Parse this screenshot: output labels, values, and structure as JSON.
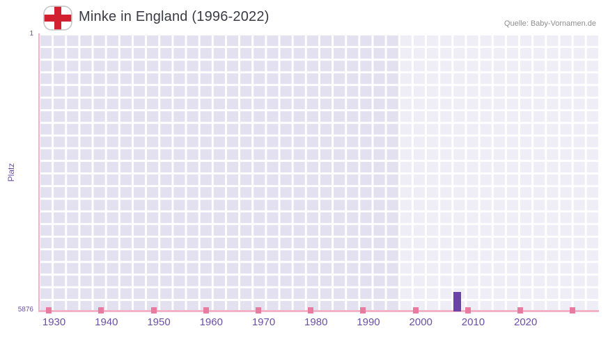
{
  "page": {
    "title": "Minke in England (1996-2022)",
    "source": "Quelle: Baby-Vornamen.de"
  },
  "flag": {
    "name": "england-flag",
    "field_color": "#ffffff",
    "cross_color": "#d22030",
    "border_color": "#c9c9c9"
  },
  "chart_data": {
    "type": "bar",
    "title": "Minke in England (1996-2022)",
    "ylabel": "Platz",
    "xlabel": "",
    "grid": true,
    "legend": "none",
    "y_axis": {
      "min": 1,
      "max": 5876,
      "inverted": true,
      "top_label": "1",
      "bottom_label": "5876"
    },
    "x_axis": {
      "domain": [
        1927,
        2034
      ],
      "tick_labels": [
        "1930",
        "1940",
        "1950",
        "1960",
        "1970",
        "1980",
        "1990",
        "2000",
        "2010",
        "2020"
      ]
    },
    "highlight_start_year": 1996,
    "decade_marks": [
      1929,
      1939,
      1949,
      1959,
      1969,
      1979,
      1989,
      1999,
      2009,
      2019,
      2029
    ],
    "series": [
      {
        "name": "Minke",
        "points": [
          {
            "year": 2007,
            "rank": 5465
          }
        ]
      }
    ],
    "colors": {
      "bar": "#6a43a8",
      "plot_bg": "#e3e0f0",
      "grid_line": "#ffffff",
      "highlight_overlay": "rgba(255,255,255,0.42)",
      "axis_line": "#f3b3c6",
      "tick_mark": "#e87ba0",
      "axis_label": "#6b4fa3",
      "title_color": "#3a3a44",
      "source_color": "#8e8e8e"
    }
  }
}
